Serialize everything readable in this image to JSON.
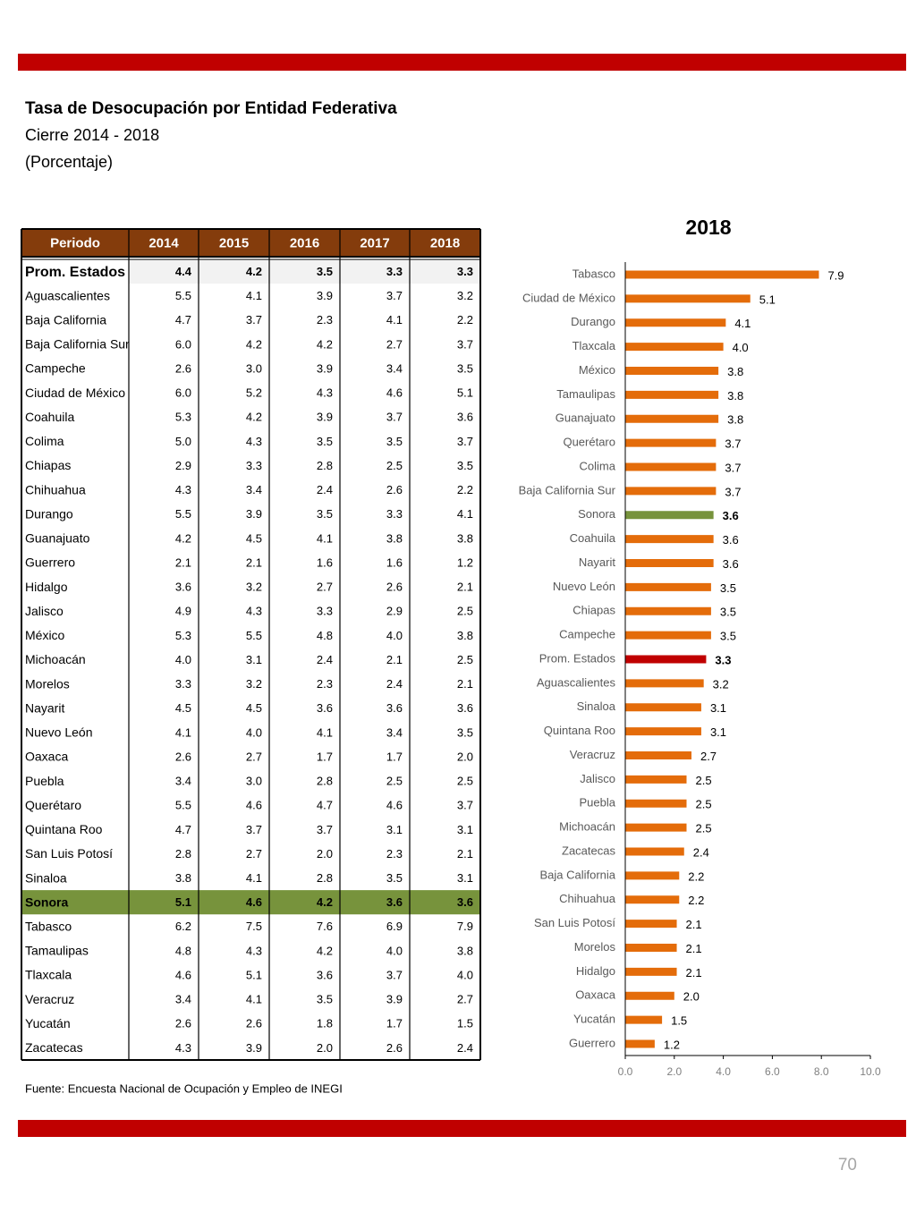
{
  "header": {
    "title": "Tasa de Desocupación por Entidad Federativa",
    "subtitle": "Cierre 2014 - 2018",
    "unit": "(Porcentaje)"
  },
  "table": {
    "columns": [
      "Periodo",
      "2014",
      "2015",
      "2016",
      "2017",
      "2018"
    ],
    "rows": [
      [
        "Prom. Estados",
        "4.4",
        "4.2",
        "3.5",
        "3.3",
        "3.3"
      ],
      [
        "Aguascalientes",
        "5.5",
        "4.1",
        "3.9",
        "3.7",
        "3.2"
      ],
      [
        "Baja California",
        "4.7",
        "3.7",
        "2.3",
        "4.1",
        "2.2"
      ],
      [
        "Baja California Sur",
        "6.0",
        "4.2",
        "4.2",
        "2.7",
        "3.7"
      ],
      [
        "Campeche",
        "2.6",
        "3.0",
        "3.9",
        "3.4",
        "3.5"
      ],
      [
        "Ciudad de México",
        "6.0",
        "5.2",
        "4.3",
        "4.6",
        "5.1"
      ],
      [
        "Coahuila",
        "5.3",
        "4.2",
        "3.9",
        "3.7",
        "3.6"
      ],
      [
        "Colima",
        "5.0",
        "4.3",
        "3.5",
        "3.5",
        "3.7"
      ],
      [
        "Chiapas",
        "2.9",
        "3.3",
        "2.8",
        "2.5",
        "3.5"
      ],
      [
        "Chihuahua",
        "4.3",
        "3.4",
        "2.4",
        "2.6",
        "2.2"
      ],
      [
        "Durango",
        "5.5",
        "3.9",
        "3.5",
        "3.3",
        "4.1"
      ],
      [
        "Guanajuato",
        "4.2",
        "4.5",
        "4.1",
        "3.8",
        "3.8"
      ],
      [
        "Guerrero",
        "2.1",
        "2.1",
        "1.6",
        "1.6",
        "1.2"
      ],
      [
        "Hidalgo",
        "3.6",
        "3.2",
        "2.7",
        "2.6",
        "2.1"
      ],
      [
        "Jalisco",
        "4.9",
        "4.3",
        "3.3",
        "2.9",
        "2.5"
      ],
      [
        "México",
        "5.3",
        "5.5",
        "4.8",
        "4.0",
        "3.8"
      ],
      [
        "Michoacán",
        "4.0",
        "3.1",
        "2.4",
        "2.1",
        "2.5"
      ],
      [
        "Morelos",
        "3.3",
        "3.2",
        "2.3",
        "2.4",
        "2.1"
      ],
      [
        "Nayarit",
        "4.5",
        "4.5",
        "3.6",
        "3.6",
        "3.6"
      ],
      [
        "Nuevo León",
        "4.1",
        "4.0",
        "4.1",
        "3.4",
        "3.5"
      ],
      [
        "Oaxaca",
        "2.6",
        "2.7",
        "1.7",
        "1.7",
        "2.0"
      ],
      [
        "Puebla",
        "3.4",
        "3.0",
        "2.8",
        "2.5",
        "2.5"
      ],
      [
        "Querétaro",
        "5.5",
        "4.6",
        "4.7",
        "4.6",
        "3.7"
      ],
      [
        "Quintana Roo",
        "4.7",
        "3.7",
        "3.7",
        "3.1",
        "3.1"
      ],
      [
        "San Luis Potosí",
        "2.8",
        "2.7",
        "2.0",
        "2.3",
        "2.1"
      ],
      [
        "Sinaloa",
        "3.8",
        "4.1",
        "2.8",
        "3.5",
        "3.1"
      ],
      [
        "Sonora",
        "5.1",
        "4.6",
        "4.2",
        "3.6",
        "3.6"
      ],
      [
        "Tabasco",
        "6.2",
        "7.5",
        "7.6",
        "6.9",
        "7.9"
      ],
      [
        "Tamaulipas",
        "4.8",
        "4.3",
        "4.2",
        "4.0",
        "3.8"
      ],
      [
        "Tlaxcala",
        "4.6",
        "5.1",
        "3.6",
        "3.7",
        "4.0"
      ],
      [
        "Veracruz",
        "3.4",
        "4.1",
        "3.5",
        "3.9",
        "2.7"
      ],
      [
        "Yucatán",
        "2.6",
        "2.6",
        "1.8",
        "1.7",
        "1.5"
      ],
      [
        "Zacatecas",
        "4.3",
        "3.9",
        "2.0",
        "2.6",
        "2.4"
      ]
    ]
  },
  "chart_data": {
    "type": "bar",
    "orientation": "horizontal",
    "title": "2018",
    "categories": [
      "Tabasco",
      "Ciudad de México",
      "Durango",
      "Tlaxcala",
      "México",
      "Tamaulipas",
      "Guanajuato",
      "Querétaro",
      "Colima",
      "Baja California Sur",
      "Sonora",
      "Coahuila",
      "Nayarit",
      "Nuevo León",
      "Chiapas",
      "Campeche",
      "Prom. Estados",
      "Aguascalientes",
      "Sinaloa",
      "Quintana Roo",
      "Veracruz",
      "Jalisco",
      "Puebla",
      "Michoacán",
      "Zacatecas",
      "Baja California",
      "Chihuahua",
      "San Luis Potosí",
      "Morelos",
      "Hidalgo",
      "Oaxaca",
      "Yucatán",
      "Guerrero"
    ],
    "values": [
      7.9,
      5.1,
      4.1,
      4.0,
      3.8,
      3.8,
      3.8,
      3.7,
      3.7,
      3.7,
      3.6,
      3.6,
      3.6,
      3.5,
      3.5,
      3.5,
      3.3,
      3.2,
      3.1,
      3.1,
      2.7,
      2.5,
      2.5,
      2.5,
      2.4,
      2.2,
      2.2,
      2.1,
      2.1,
      2.1,
      2.0,
      1.5,
      1.2
    ],
    "value_labels": [
      "7.9",
      "5.1",
      "4.1",
      "4.0",
      "3.8",
      "3.8",
      "3.8",
      "3.7",
      "3.7",
      "3.7",
      "3.6",
      "3.6",
      "3.6",
      "3.5",
      "3.5",
      "3.5",
      "3.3",
      "3.2",
      "3.1",
      "3.1",
      "2.7",
      "2.5",
      "2.5",
      "2.5",
      "2.4",
      "2.2",
      "2.2",
      "2.1",
      "2.1",
      "2.1",
      "2.0",
      "1.5",
      "1.2"
    ],
    "colors": [
      "#e46c0a",
      "#e46c0a",
      "#e46c0a",
      "#e46c0a",
      "#e46c0a",
      "#e46c0a",
      "#e46c0a",
      "#e46c0a",
      "#e46c0a",
      "#e46c0a",
      "#77933c",
      "#e46c0a",
      "#e46c0a",
      "#e46c0a",
      "#e46c0a",
      "#e46c0a",
      "#c00000",
      "#e46c0a",
      "#e46c0a",
      "#e46c0a",
      "#e46c0a",
      "#e46c0a",
      "#e46c0a",
      "#e46c0a",
      "#e46c0a",
      "#e46c0a",
      "#e46c0a",
      "#e46c0a",
      "#e46c0a",
      "#e46c0a",
      "#e46c0a",
      "#e46c0a",
      "#e46c0a"
    ],
    "xlim": [
      0,
      10
    ],
    "xticks": [
      {
        "value": 0,
        "label": "0.0"
      },
      {
        "value": 2,
        "label": "2.0"
      },
      {
        "value": 4,
        "label": "4.0"
      },
      {
        "value": 6,
        "label": "6.0"
      },
      {
        "value": 8,
        "label": "8.0"
      },
      {
        "value": 10,
        "label": "10.0"
      }
    ]
  },
  "footer": {
    "source": "Fuente: Encuesta Nacional de Ocupación y Empleo de INEGI",
    "page": "70"
  }
}
